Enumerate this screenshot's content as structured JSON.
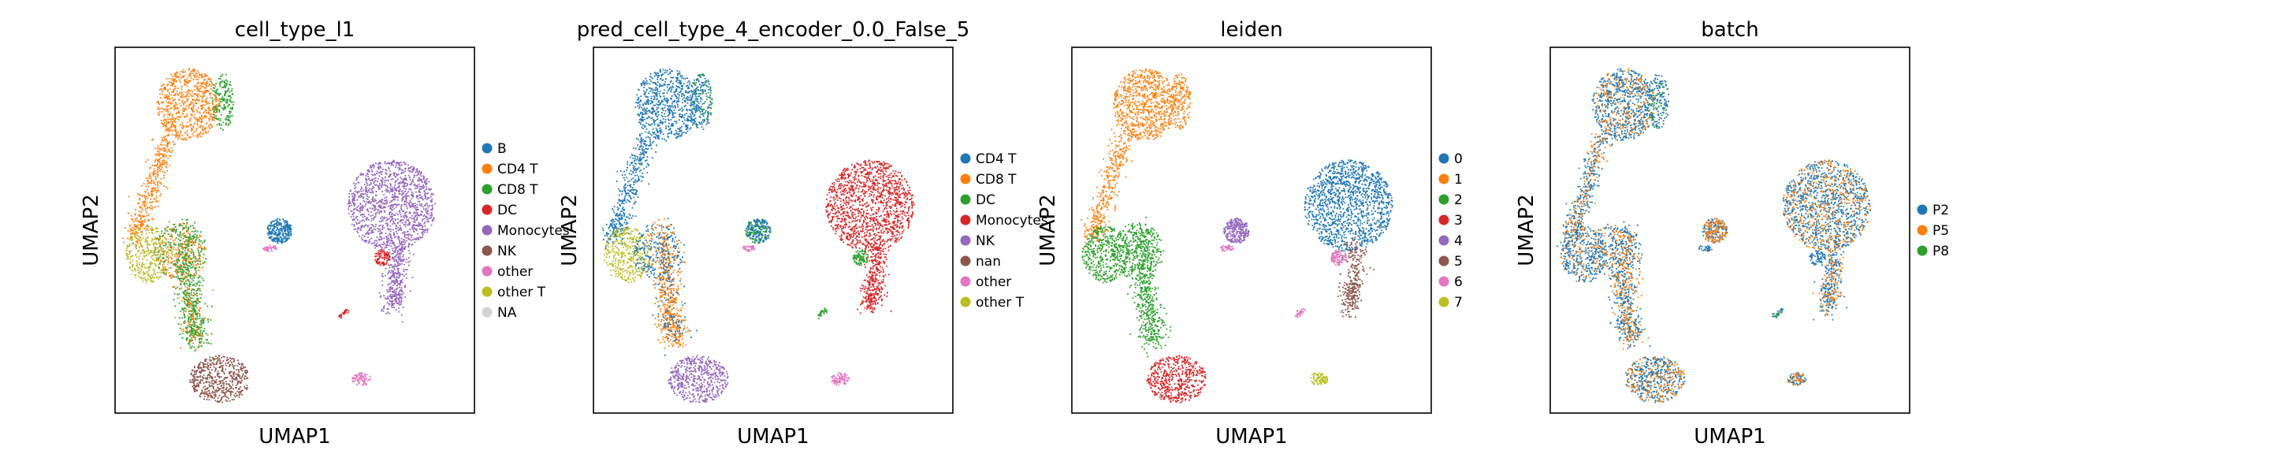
{
  "chart_data": [
    {
      "type": "scatter",
      "title": "cell_type_l1",
      "xlabel": "UMAP1",
      "ylabel": "UMAP2",
      "legend_position": "right",
      "grid": false,
      "legend": [
        {
          "label": "B",
          "color": "#1f77b4"
        },
        {
          "label": "CD4 T",
          "color": "#ff7f0e"
        },
        {
          "label": "CD8 T",
          "color": "#2ca02c"
        },
        {
          "label": "DC",
          "color": "#d62728"
        },
        {
          "label": "Monocytes",
          "color": "#9467bd"
        },
        {
          "label": "NK",
          "color": "#8c564b"
        },
        {
          "label": "other",
          "color": "#e377c2"
        },
        {
          "label": "other T",
          "color": "#bcbd22"
        },
        {
          "label": "NA",
          "color": "#d3d3d3"
        }
      ]
    },
    {
      "type": "scatter",
      "title": "pred_cell_type_4_encoder_0.0_False_5",
      "xlabel": "UMAP1",
      "ylabel": "UMAP2",
      "legend_position": "right",
      "grid": false,
      "legend": [
        {
          "label": "CD4 T",
          "color": "#1f77b4"
        },
        {
          "label": "CD8 T",
          "color": "#ff7f0e"
        },
        {
          "label": "DC",
          "color": "#2ca02c"
        },
        {
          "label": "Monocytes",
          "color": "#d62728"
        },
        {
          "label": "NK",
          "color": "#9467bd"
        },
        {
          "label": "nan",
          "color": "#8c564b"
        },
        {
          "label": "other",
          "color": "#e377c2"
        },
        {
          "label": "other T",
          "color": "#bcbd22"
        }
      ]
    },
    {
      "type": "scatter",
      "title": "leiden",
      "xlabel": "UMAP1",
      "ylabel": "UMAP2",
      "legend_position": "right",
      "grid": false,
      "legend": [
        {
          "label": "0",
          "color": "#1f77b4"
        },
        {
          "label": "1",
          "color": "#ff7f0e"
        },
        {
          "label": "2",
          "color": "#2ca02c"
        },
        {
          "label": "3",
          "color": "#d62728"
        },
        {
          "label": "4",
          "color": "#9467bd"
        },
        {
          "label": "5",
          "color": "#8c564b"
        },
        {
          "label": "6",
          "color": "#e377c2"
        },
        {
          "label": "7",
          "color": "#bcbd22"
        }
      ]
    },
    {
      "type": "scatter",
      "title": "batch",
      "xlabel": "UMAP1",
      "ylabel": "UMAP2",
      "legend_position": "right",
      "grid": false,
      "legend": [
        {
          "label": "P2",
          "color": "#1f77b4"
        },
        {
          "label": "P5",
          "color": "#ff7f0e"
        },
        {
          "label": "P8",
          "color": "#2ca02c"
        }
      ]
    }
  ]
}
